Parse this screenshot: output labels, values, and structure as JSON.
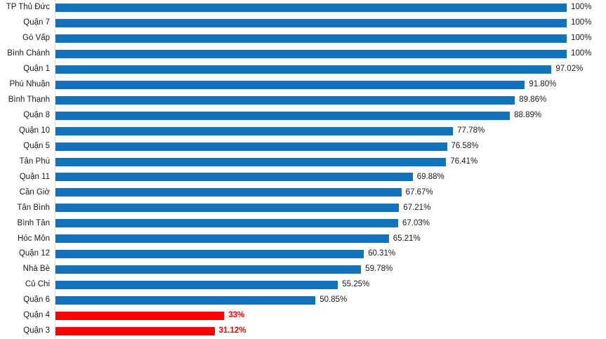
{
  "chart_data": {
    "type": "bar",
    "orientation": "horizontal",
    "title": "",
    "xlabel": "",
    "ylabel": "",
    "xlim": [
      0,
      100
    ],
    "grid": false,
    "legend": "none",
    "value_label_position": "outside-end",
    "categories": [
      "TP Thủ Đức",
      "Quận 7",
      "Gò Vấp",
      "Bình Chánh",
      "Quận 1",
      "Phú Nhuận",
      "Bình Thạnh",
      "Quận 8",
      "Quận 10",
      "Quận 5",
      "Tân Phú",
      "Quận 11",
      "Cần Giờ",
      "Tân Bình",
      "Bình Tân",
      "Hóc Môn",
      "Quận 12",
      "Nhà Bè",
      "Củ Chi",
      "Quận 6",
      "Quận 4",
      "Quận 3"
    ],
    "values": [
      100,
      100,
      100,
      100,
      97.02,
      91.8,
      89.86,
      88.89,
      77.78,
      76.58,
      76.41,
      69.88,
      67.67,
      67.21,
      67.03,
      65.21,
      60.31,
      59.78,
      55.25,
      50.85,
      33,
      31.12
    ],
    "value_labels": [
      "100%",
      "100%",
      "100%",
      "100%",
      "97.02%",
      "91.80%",
      "89.86%",
      "88.89%",
      "77.78%",
      "76.58%",
      "76.41%",
      "69.88%",
      "67.67%",
      "67.21%",
      "67.03%",
      "65.21%",
      "60.31%",
      "59.78%",
      "55.25%",
      "50.85%",
      "33%",
      "31.12%"
    ],
    "highlight_indices": [
      20,
      21
    ],
    "colors": {
      "bar_default": "#1273BD",
      "bar_highlight": "#FF0000",
      "category_label": "#1A1A1A",
      "value_label_default": "#1A1A1A",
      "value_label_highlight": "#FF0000",
      "axis_line": "#D9D9D9"
    }
  }
}
